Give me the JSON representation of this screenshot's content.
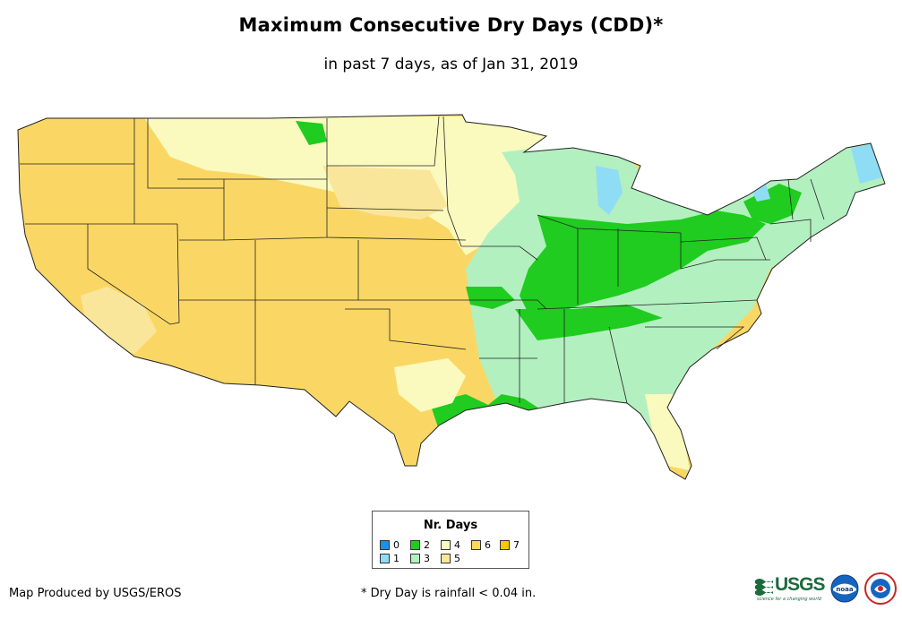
{
  "title": "Maximum Consecutive Dry Days (CDD)*",
  "subtitle": "in past 7 days, as of Jan 31, 2019",
  "legend": {
    "title": "Nr. Days",
    "items": [
      {
        "label": "0",
        "color": "#1e90e6"
      },
      {
        "label": "1",
        "color": "#8fdcf5"
      },
      {
        "label": "2",
        "color": "#1fcc1f"
      },
      {
        "label": "3",
        "color": "#b3f0c0"
      },
      {
        "label": "4",
        "color": "#fafabe"
      },
      {
        "label": "5",
        "color": "#fae69b"
      },
      {
        "label": "6",
        "color": "#fad764"
      },
      {
        "label": "7",
        "color": "#f7c800"
      }
    ]
  },
  "footer": {
    "credit": "Map Produced by USGS/EROS",
    "note": "* Dry Day is rainfall < 0.04 in."
  },
  "logos": {
    "usgs": "USGS",
    "usgs_tagline": "science for a changing world",
    "noaa": "noaa"
  }
}
